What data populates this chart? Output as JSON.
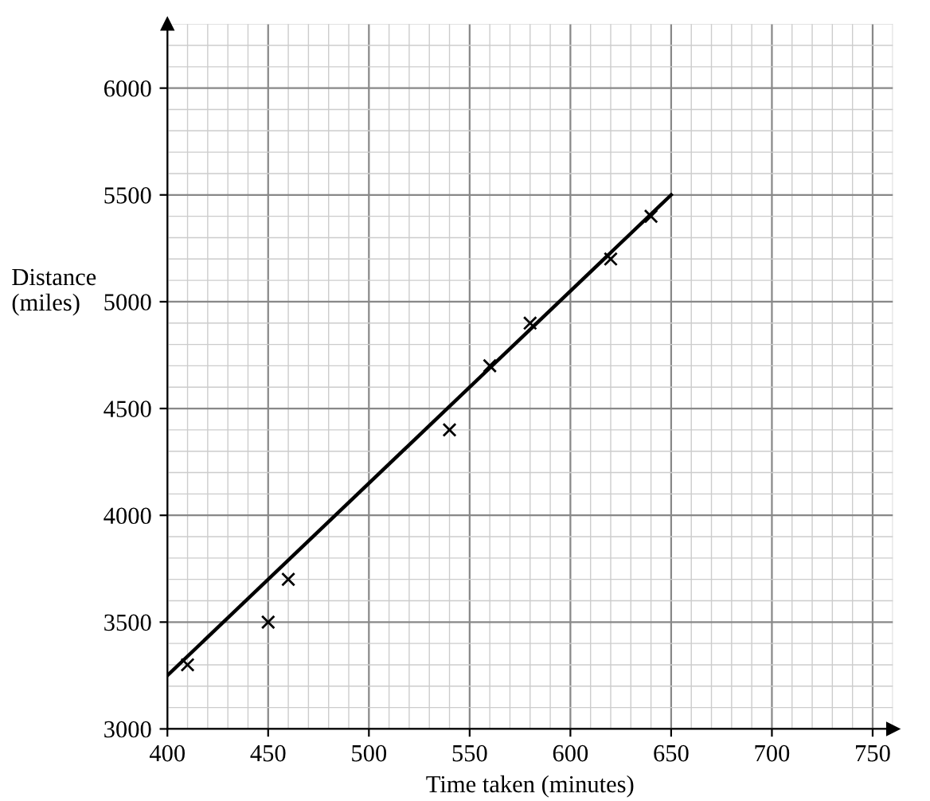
{
  "chart_data": {
    "type": "scatter",
    "xlabel": "Time taken (minutes)",
    "ylabel": "Distance\n(miles)",
    "xlim": [
      400,
      760
    ],
    "ylim": [
      3000,
      6300
    ],
    "xticks": [
      400,
      450,
      500,
      550,
      600,
      650,
      700,
      750
    ],
    "yticks": [
      3000,
      3500,
      4000,
      4500,
      5000,
      5500,
      6000
    ],
    "grid": true,
    "series": [
      {
        "color": "#000000",
        "marker": "cross",
        "x": [
          410,
          450,
          460,
          540,
          560,
          580,
          620,
          640
        ],
        "values": [
          3300,
          3500,
          3700,
          4400,
          4700,
          4900,
          5200,
          5400
        ]
      },
      {
        "type": "line",
        "color": "#000000",
        "x": [
          400,
          650
        ],
        "values": [
          3250,
          5500
        ],
        "line_style": "solid"
      }
    ]
  }
}
